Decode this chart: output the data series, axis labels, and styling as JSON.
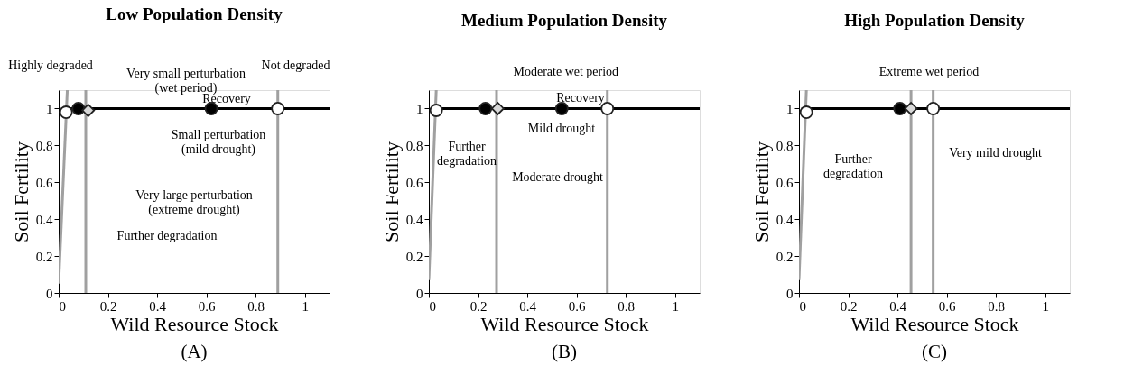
{
  "chart_data": [
    {
      "type": "line",
      "title": "Low Population Density",
      "xlabel": "Wild Resource Stock",
      "ylabel": "Soil Fertility",
      "xlim": [
        0,
        1.1
      ],
      "ylim": [
        0,
        1.1
      ],
      "xticks": [
        0,
        0.2,
        0.4,
        0.6,
        0.8,
        1
      ],
      "yticks": [
        0,
        0.2,
        0.4,
        0.6,
        0.8,
        1
      ],
      "grid": false,
      "series": [
        {
          "color": "#a0a0a0",
          "x": [
            0.0,
            0.035
          ],
          "values": [
            0.05,
            1.1
          ]
        },
        {
          "color": "#a0a0a0",
          "x": [
            0.11,
            0.11
          ],
          "values": [
            0,
            1.1
          ]
        },
        {
          "color": "#a0a0a0",
          "x": [
            0.89,
            0.89
          ],
          "values": [
            0,
            1.1
          ]
        },
        {
          "color": "#000000",
          "x": [
            0.01,
            1.1
          ],
          "values": [
            1,
            1
          ]
        },
        {
          "type": "scatter",
          "marker": "circle",
          "color": "#ffffff",
          "x": [
            0.03,
            0.89
          ],
          "values": [
            0.98,
            1
          ]
        },
        {
          "type": "scatter",
          "marker": "circle",
          "color": "#000000",
          "x": [
            0.08,
            0.62
          ],
          "values": [
            1,
            1
          ]
        },
        {
          "type": "scatter",
          "marker": "diamond",
          "color": "#d8d8d8",
          "x": [
            0.12
          ],
          "values": [
            0.99
          ]
        }
      ],
      "annotations": [
        "Highly degraded",
        "Very small perturbation\n(wet period)",
        "Not degraded",
        "Recovery",
        "Small perturbation\n(mild drought)",
        "Very large perturbation\n(extreme drought)",
        "Further degradation",
        "(A)"
      ]
    },
    {
      "type": "line",
      "title": "Medium Population Density",
      "xlabel": "Wild Resource Stock",
      "ylabel": "Soil Fertility",
      "xlim": [
        0,
        1.1
      ],
      "ylim": [
        0,
        1.1
      ],
      "xticks": [
        0,
        0.2,
        0.4,
        0.6,
        0.8,
        1
      ],
      "yticks": [
        0,
        0.2,
        0.4,
        0.6,
        0.8,
        1
      ],
      "grid": false,
      "series": [
        {
          "color": "#a0a0a0",
          "x": [
            0.0,
            0.03
          ],
          "values": [
            0.07,
            1.1
          ]
        },
        {
          "color": "#a0a0a0",
          "x": [
            0.275,
            0.275
          ],
          "values": [
            0,
            1.1
          ]
        },
        {
          "color": "#a0a0a0",
          "x": [
            0.725,
            0.725
          ],
          "values": [
            0,
            1.1
          ]
        },
        {
          "color": "#000000",
          "x": [
            0.01,
            1.1
          ],
          "values": [
            1,
            1
          ]
        },
        {
          "type": "scatter",
          "marker": "circle",
          "color": "#ffffff",
          "x": [
            0.03,
            0.725
          ],
          "values": [
            0.99,
            1
          ]
        },
        {
          "type": "scatter",
          "marker": "circle",
          "color": "#000000",
          "x": [
            0.23,
            0.54
          ],
          "values": [
            1,
            1
          ]
        },
        {
          "type": "scatter",
          "marker": "diamond",
          "color": "#d8d8d8",
          "x": [
            0.28
          ],
          "values": [
            1
          ]
        }
      ],
      "annotations": [
        "Moderate wet period",
        "Recovery",
        "Mild drought",
        "Further\ndegradation",
        "Moderate drought",
        "(B)"
      ]
    },
    {
      "type": "line",
      "title": "High Population Density",
      "xlabel": "Wild Resource Stock",
      "ylabel": "Soil Fertility",
      "xlim": [
        0,
        1.1
      ],
      "ylim": [
        0,
        1.1
      ],
      "xticks": [
        0,
        0.2,
        0.4,
        0.6,
        0.8,
        1
      ],
      "yticks": [
        0,
        0.2,
        0.4,
        0.6,
        0.8,
        1
      ],
      "grid": false,
      "series": [
        {
          "color": "#a0a0a0",
          "x": [
            0.0,
            0.03
          ],
          "values": [
            0.07,
            1.1
          ]
        },
        {
          "color": "#a0a0a0",
          "x": [
            0.455,
            0.455
          ],
          "values": [
            0,
            1.1
          ]
        },
        {
          "color": "#a0a0a0",
          "x": [
            0.545,
            0.545
          ],
          "values": [
            0,
            1.1
          ]
        },
        {
          "color": "#000000",
          "x": [
            0.01,
            1.1
          ],
          "values": [
            1,
            1
          ]
        },
        {
          "type": "scatter",
          "marker": "circle",
          "color": "#ffffff",
          "x": [
            0.03,
            0.545
          ],
          "values": [
            0.98,
            1
          ]
        },
        {
          "type": "scatter",
          "marker": "circle",
          "color": "#000000",
          "x": [
            0.41
          ],
          "values": [
            1
          ]
        },
        {
          "type": "scatter",
          "marker": "diamond",
          "color": "#d8d8d8",
          "x": [
            0.455
          ],
          "values": [
            1
          ]
        }
      ],
      "annotations": [
        "Extreme wet period",
        "Further\ndegradation",
        "Very mild drought",
        "(C)"
      ]
    }
  ]
}
